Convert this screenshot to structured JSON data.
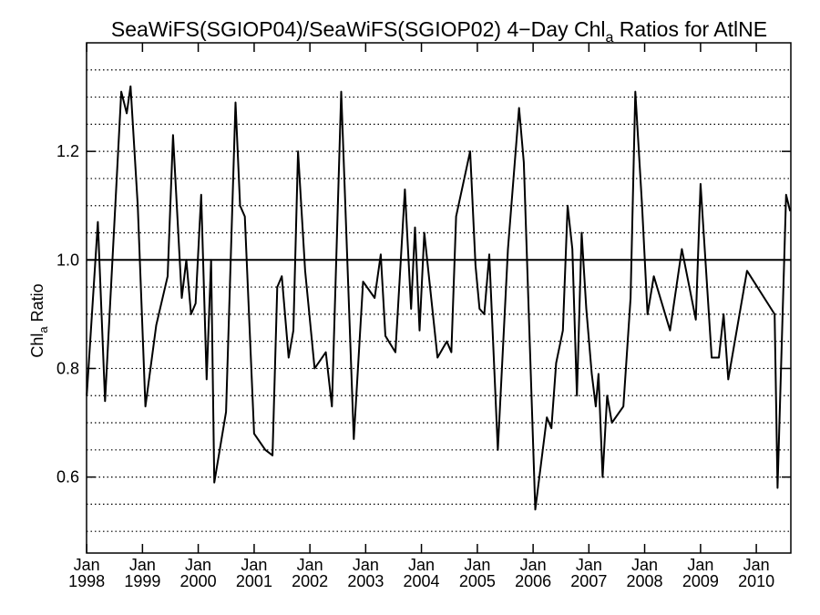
{
  "chart_data": {
    "type": "line",
    "title": "SeaWiFS(SGIOP04)/SeaWiFS(SGIOP02) 4−Day Chl",
    "title_subscript": "a",
    "title_suffix": " Ratios for AtlNE",
    "ylabel": "Chl",
    "ylabel_subscript": "a",
    "ylabel_suffix": " Ratio",
    "xlabel": "",
    "xlim": [
      "1997-12-31",
      "2010-08-15"
    ],
    "ylim": [
      0.46,
      1.4
    ],
    "y_ticks": [
      0.6,
      0.8,
      1.0,
      1.2
    ],
    "y_tick_labels": [
      "0.6",
      "0.8",
      "1.0",
      "1.2"
    ],
    "x_ticks": [
      "1998-01-01",
      "1999-01-01",
      "2000-01-01",
      "2001-01-01",
      "2002-01-01",
      "2003-01-01",
      "2004-01-01",
      "2005-01-01",
      "2006-01-01",
      "2007-01-01",
      "2008-01-01",
      "2009-01-01",
      "2010-01-01"
    ],
    "x_tick_month_labels": [
      "Jan",
      "Jan",
      "Jan",
      "Jan",
      "Jan",
      "Jan",
      "Jan",
      "Jan",
      "Jan",
      "Jan",
      "Jan",
      "Jan",
      "Jan"
    ],
    "x_tick_year_labels": [
      "1998",
      "1999",
      "2000",
      "2001",
      "2002",
      "2003",
      "2004",
      "2005",
      "2006",
      "2007",
      "2008",
      "2009",
      "2010"
    ],
    "gridlines": "horizontal dotted every 0.05",
    "reference_line": 1.0,
    "series": [
      {
        "points": [
          [
            "1998-01-01",
            0.75
          ],
          [
            "1998-03-15",
            1.07
          ],
          [
            "1998-05-01",
            0.74
          ],
          [
            "1998-08-15",
            1.31
          ],
          [
            "1998-09-20",
            1.27
          ],
          [
            "1998-10-15",
            1.32
          ],
          [
            "1998-12-01",
            1.1
          ],
          [
            "1999-01-20",
            0.73
          ],
          [
            "1999-04-01",
            0.88
          ],
          [
            "1999-06-15",
            0.97
          ],
          [
            "1999-07-20",
            1.23
          ],
          [
            "1999-09-15",
            0.93
          ],
          [
            "1999-10-15",
            1.0
          ],
          [
            "1999-11-15",
            0.9
          ],
          [
            "1999-12-15",
            0.92
          ],
          [
            "2000-01-20",
            1.12
          ],
          [
            "2000-02-25",
            0.78
          ],
          [
            "2000-03-25",
            1.0
          ],
          [
            "2000-04-15",
            0.59
          ],
          [
            "2000-07-01",
            0.72
          ],
          [
            "2000-09-01",
            1.29
          ],
          [
            "2000-10-01",
            1.1
          ],
          [
            "2000-11-01",
            1.08
          ],
          [
            "2001-01-01",
            0.68
          ],
          [
            "2001-03-15",
            0.65
          ],
          [
            "2001-05-01",
            0.64
          ],
          [
            "2001-06-01",
            0.95
          ],
          [
            "2001-07-01",
            0.97
          ],
          [
            "2001-08-15",
            0.82
          ],
          [
            "2001-09-15",
            0.87
          ],
          [
            "2001-10-15",
            1.2
          ],
          [
            "2001-12-01",
            0.98
          ],
          [
            "2002-02-01",
            0.8
          ],
          [
            "2002-04-15",
            0.83
          ],
          [
            "2002-05-25",
            0.73
          ],
          [
            "2002-07-25",
            1.31
          ],
          [
            "2002-10-15",
            0.67
          ],
          [
            "2002-12-15",
            0.96
          ],
          [
            "2003-03-01",
            0.93
          ],
          [
            "2003-04-10",
            1.01
          ],
          [
            "2003-05-10",
            0.86
          ],
          [
            "2003-07-15",
            0.83
          ],
          [
            "2003-09-15",
            1.13
          ],
          [
            "2003-10-25",
            0.91
          ],
          [
            "2003-11-20",
            1.06
          ],
          [
            "2003-12-20",
            0.87
          ],
          [
            "2004-01-20",
            1.05
          ],
          [
            "2004-04-15",
            0.82
          ],
          [
            "2004-06-15",
            0.85
          ],
          [
            "2004-07-15",
            0.83
          ],
          [
            "2004-08-15",
            1.08
          ],
          [
            "2004-11-15",
            1.2
          ],
          [
            "2004-12-20",
            0.99
          ],
          [
            "2005-01-15",
            0.91
          ],
          [
            "2005-02-15",
            0.9
          ],
          [
            "2005-03-20",
            1.01
          ],
          [
            "2005-05-15",
            0.65
          ],
          [
            "2005-07-20",
            1.02
          ],
          [
            "2005-10-01",
            1.28
          ],
          [
            "2005-11-01",
            1.18
          ],
          [
            "2006-01-15",
            0.54
          ],
          [
            "2006-04-01",
            0.71
          ],
          [
            "2006-05-01",
            0.69
          ],
          [
            "2006-06-01",
            0.81
          ],
          [
            "2006-07-15",
            0.87
          ],
          [
            "2006-08-15",
            1.1
          ],
          [
            "2006-09-15",
            1.02
          ],
          [
            "2006-10-15",
            0.75
          ],
          [
            "2006-11-15",
            1.05
          ],
          [
            "2006-12-15",
            0.91
          ],
          [
            "2007-01-20",
            0.79
          ],
          [
            "2007-02-15",
            0.73
          ],
          [
            "2007-03-05",
            0.79
          ],
          [
            "2007-04-01",
            0.6
          ],
          [
            "2007-05-01",
            0.75
          ],
          [
            "2007-06-01",
            0.7
          ],
          [
            "2007-08-15",
            0.73
          ],
          [
            "2007-10-01",
            0.93
          ],
          [
            "2007-11-01",
            1.31
          ],
          [
            "2007-12-15",
            1.1
          ],
          [
            "2008-01-20",
            0.9
          ],
          [
            "2008-03-01",
            0.97
          ],
          [
            "2008-06-15",
            0.87
          ],
          [
            "2008-09-01",
            1.02
          ],
          [
            "2008-12-01",
            0.89
          ],
          [
            "2009-01-01",
            1.14
          ],
          [
            "2009-03-15",
            0.82
          ],
          [
            "2009-05-01",
            0.82
          ],
          [
            "2009-06-01",
            0.9
          ],
          [
            "2009-07-01",
            0.78
          ],
          [
            "2009-11-01",
            0.98
          ],
          [
            "2010-05-01",
            0.9
          ],
          [
            "2010-05-20",
            0.58
          ],
          [
            "2010-07-15",
            1.12
          ],
          [
            "2010-08-10",
            1.09
          ]
        ]
      }
    ]
  }
}
